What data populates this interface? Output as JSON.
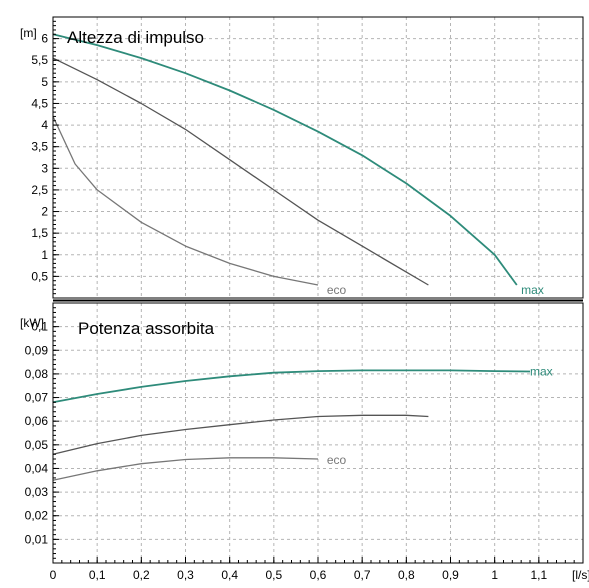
{
  "colors": {
    "max": "#2e8b7a",
    "mid": "#555555",
    "eco": "#777777",
    "grid": "#b5b5b5",
    "frame": "#000000"
  },
  "chart_data": [
    {
      "type": "line",
      "title": "Altezza di impulso",
      "ylabel": "[m]",
      "xlim": [
        0,
        1.2
      ],
      "ylim": [
        0,
        6.5
      ],
      "yticks": [
        {
          "v": 0.5,
          "label": "0,5"
        },
        {
          "v": 1,
          "label": "1"
        },
        {
          "v": 1.5,
          "label": "1,5"
        },
        {
          "v": 2,
          "label": "2"
        },
        {
          "v": 2.5,
          "label": "2,5"
        },
        {
          "v": 3,
          "label": "3"
        },
        {
          "v": 3.5,
          "label": "3,5"
        },
        {
          "v": 4,
          "label": "4"
        },
        {
          "v": 4.5,
          "label": "4,5"
        },
        {
          "v": 5,
          "label": "5"
        },
        {
          "v": 5.5,
          "label": "5,5"
        },
        {
          "v": 6,
          "label": "6"
        }
      ],
      "series": [
        {
          "name": "max",
          "color_key": "max",
          "label_at": [
            1.06,
            0.18
          ],
          "x": [
            0,
            0.1,
            0.2,
            0.3,
            0.4,
            0.5,
            0.6,
            0.7,
            0.8,
            0.9,
            1.0,
            1.05
          ],
          "y": [
            6.1,
            5.85,
            5.55,
            5.2,
            4.8,
            4.35,
            3.85,
            3.3,
            2.65,
            1.9,
            1.0,
            0.3
          ]
        },
        {
          "name": "",
          "color_key": "mid",
          "x": [
            0,
            0.1,
            0.2,
            0.3,
            0.4,
            0.5,
            0.6,
            0.7,
            0.8,
            0.85
          ],
          "y": [
            5.55,
            5.05,
            4.5,
            3.9,
            3.2,
            2.5,
            1.8,
            1.2,
            0.6,
            0.3
          ]
        },
        {
          "name": "eco",
          "color_key": "eco",
          "label_at": [
            0.62,
            0.18
          ],
          "x": [
            0,
            0.05,
            0.1,
            0.2,
            0.3,
            0.4,
            0.5,
            0.6
          ],
          "y": [
            4.2,
            3.1,
            2.5,
            1.75,
            1.2,
            0.8,
            0.5,
            0.3
          ]
        }
      ]
    },
    {
      "type": "line",
      "title": "Potenza assorbita",
      "xlabel": "[l/s]",
      "ylabel": "[kW]",
      "xlim": [
        0,
        1.2
      ],
      "ylim": [
        0,
        0.11
      ],
      "yticks": [
        {
          "v": 0.01,
          "label": "0,01"
        },
        {
          "v": 0.02,
          "label": "0,02"
        },
        {
          "v": 0.03,
          "label": "0,03"
        },
        {
          "v": 0.04,
          "label": "0,04"
        },
        {
          "v": 0.05,
          "label": "0,05"
        },
        {
          "v": 0.06,
          "label": "0,06"
        },
        {
          "v": 0.07,
          "label": "0,07"
        },
        {
          "v": 0.08,
          "label": "0,08"
        },
        {
          "v": 0.09,
          "label": "0,09"
        },
        {
          "v": 0.1,
          "label": "0,1"
        }
      ],
      "xticks": [
        {
          "v": 0,
          "label": "0"
        },
        {
          "v": 0.1,
          "label": "0,1"
        },
        {
          "v": 0.2,
          "label": "0,2"
        },
        {
          "v": 0.3,
          "label": "0,3"
        },
        {
          "v": 0.4,
          "label": "0,4"
        },
        {
          "v": 0.5,
          "label": "0,5"
        },
        {
          "v": 0.6,
          "label": "0,6"
        },
        {
          "v": 0.7,
          "label": "0,7"
        },
        {
          "v": 0.8,
          "label": "0,8"
        },
        {
          "v": 0.9,
          "label": "0,9"
        },
        {
          "v": 1.0,
          "label": "1"
        },
        {
          "v": 1.1,
          "label": "1,1"
        }
      ],
      "series": [
        {
          "name": "max",
          "color_key": "max",
          "label_at": [
            1.08,
            0.081
          ],
          "x": [
            0,
            0.1,
            0.2,
            0.3,
            0.4,
            0.5,
            0.6,
            0.7,
            0.8,
            0.9,
            1.0,
            1.08
          ],
          "y": [
            0.068,
            0.0715,
            0.0745,
            0.077,
            0.079,
            0.0805,
            0.0812,
            0.0815,
            0.0815,
            0.0815,
            0.0812,
            0.081
          ]
        },
        {
          "name": "",
          "color_key": "mid",
          "x": [
            0,
            0.1,
            0.2,
            0.3,
            0.4,
            0.5,
            0.6,
            0.7,
            0.8,
            0.85
          ],
          "y": [
            0.046,
            0.0505,
            0.054,
            0.0565,
            0.0585,
            0.0605,
            0.062,
            0.0625,
            0.0625,
            0.062
          ]
        },
        {
          "name": "eco",
          "color_key": "eco",
          "label_at": [
            0.62,
            0.0435
          ],
          "x": [
            0,
            0.1,
            0.2,
            0.3,
            0.4,
            0.5,
            0.6
          ],
          "y": [
            0.035,
            0.039,
            0.042,
            0.0438,
            0.0445,
            0.0445,
            0.044
          ]
        }
      ]
    }
  ]
}
